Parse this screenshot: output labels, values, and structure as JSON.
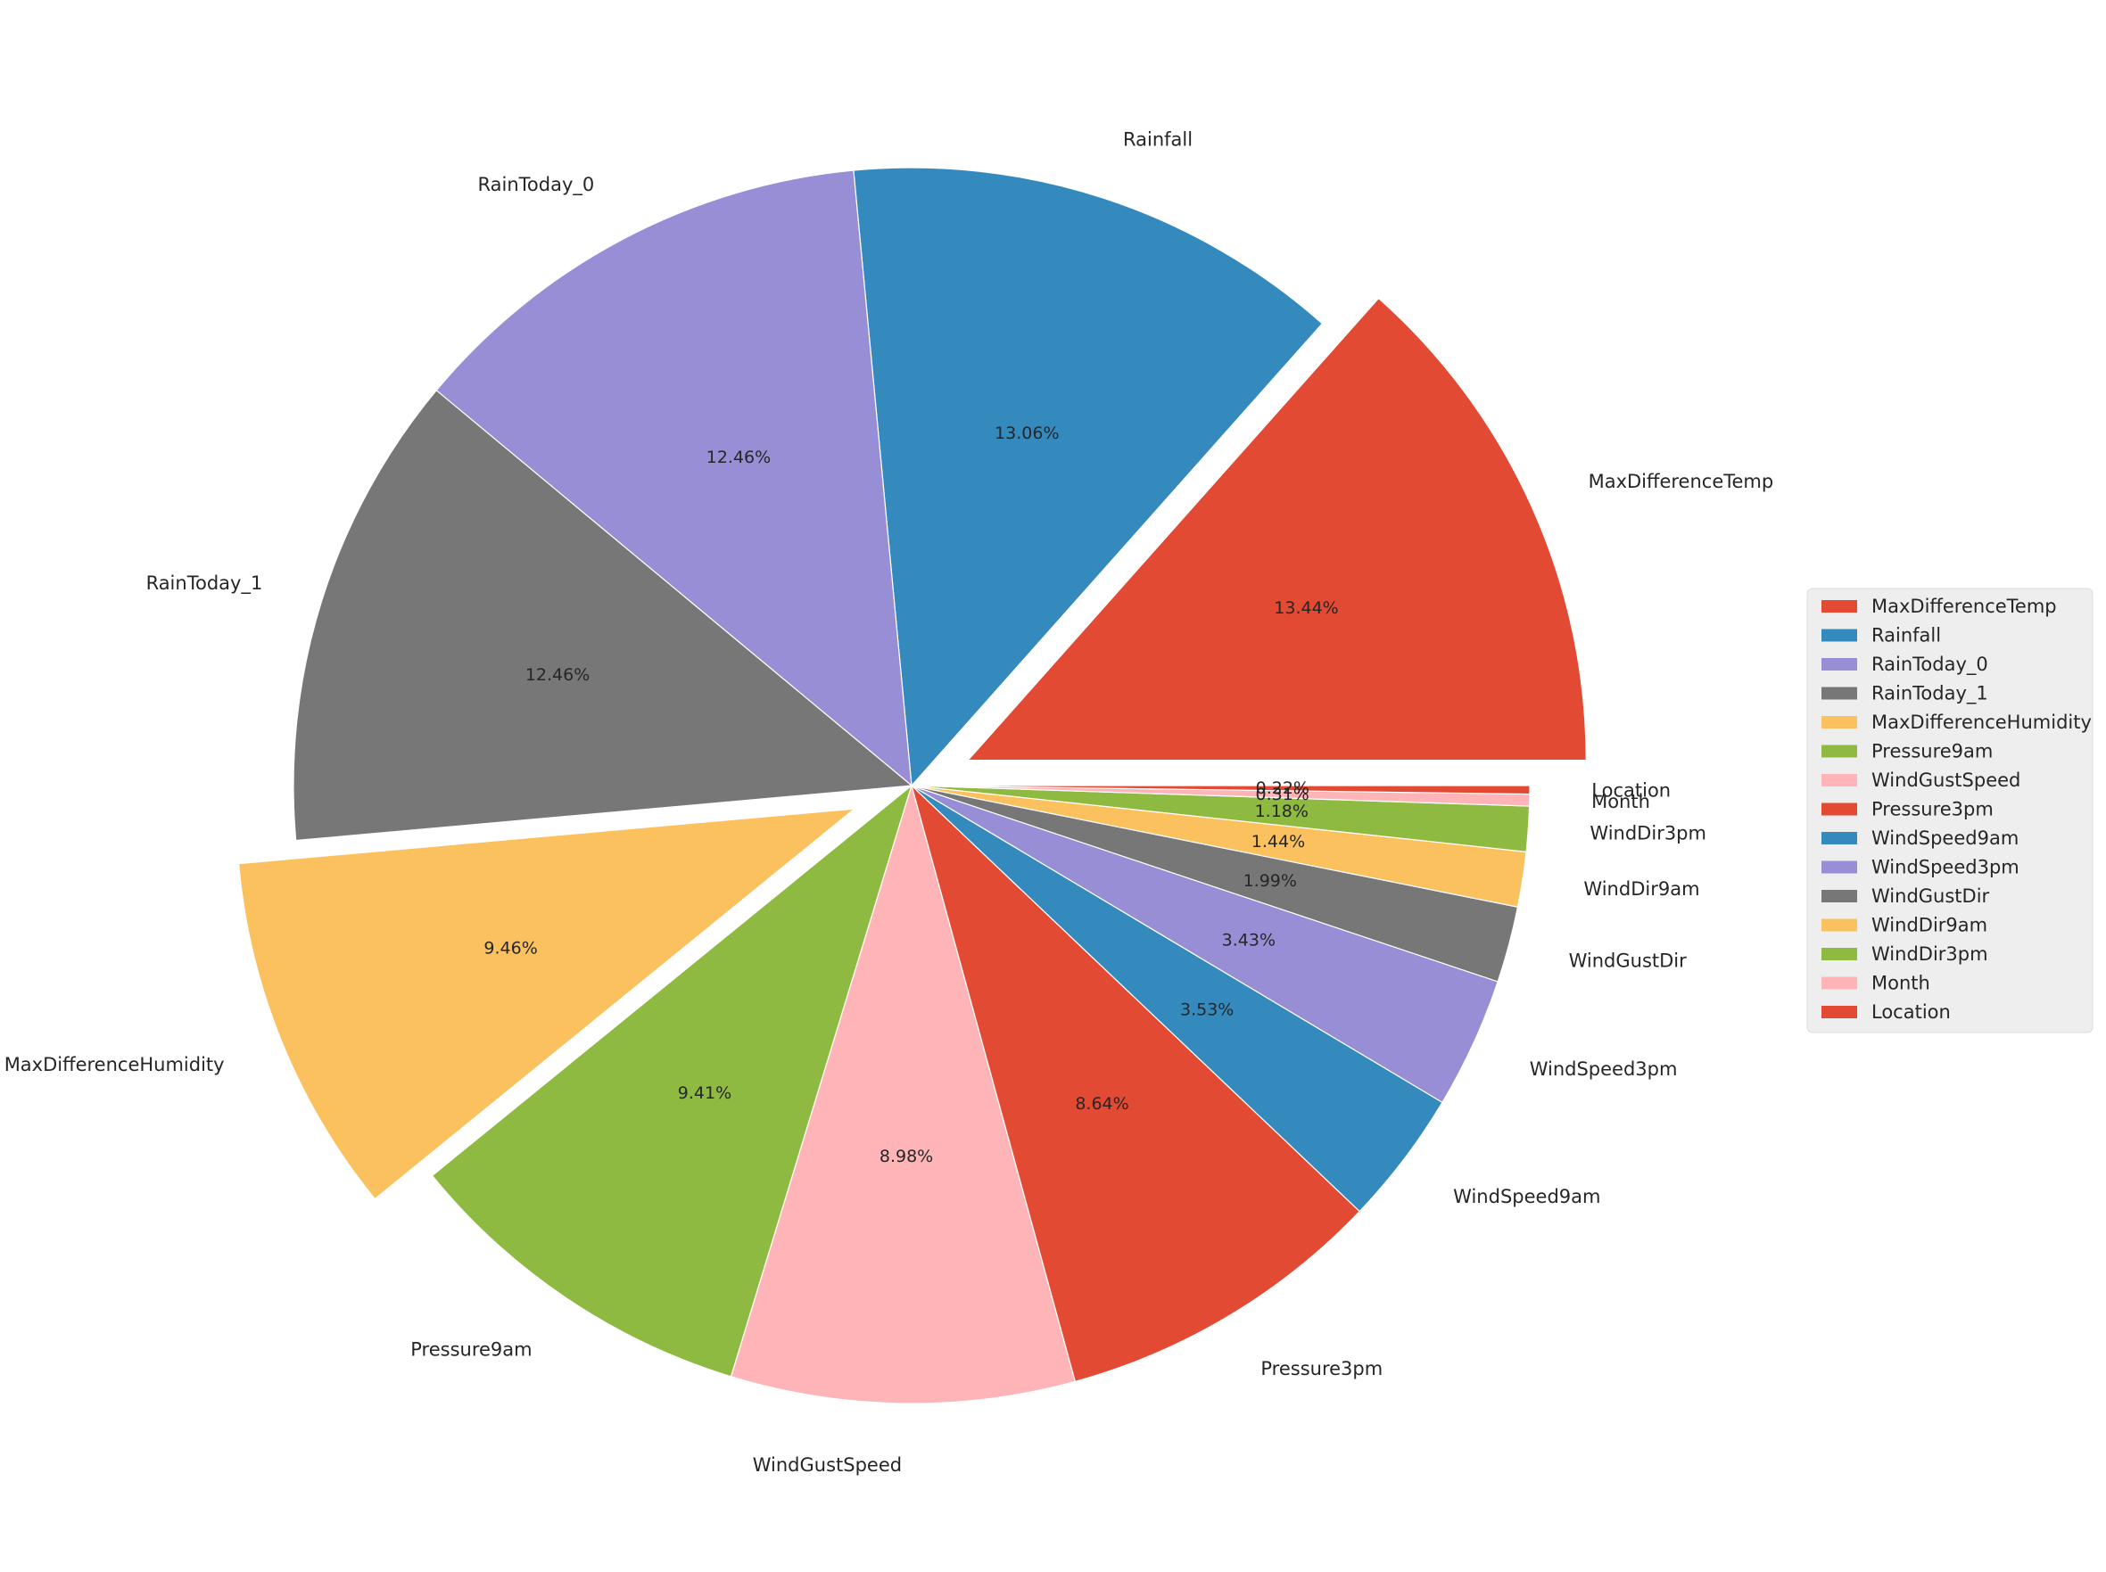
{
  "chart_data": {
    "type": "pie",
    "title": "",
    "start_angle_deg": 0,
    "direction": "counterclockwise",
    "legend_position": "center-right",
    "slices": [
      {
        "label": "MaxDifferenceTemp",
        "value": 13.44,
        "pct_text": "13.44%",
        "color": "#E24A33",
        "exploded": true
      },
      {
        "label": "Rainfall",
        "value": 13.06,
        "pct_text": "13.06%",
        "color": "#348ABD",
        "exploded": false
      },
      {
        "label": "RainToday_0",
        "value": 12.46,
        "pct_text": "12.46%",
        "color": "#988ED5",
        "exploded": false
      },
      {
        "label": "RainToday_1",
        "value": 12.46,
        "pct_text": "12.46%",
        "color": "#777777",
        "exploded": false
      },
      {
        "label": "MaxDifferenceHumidity",
        "value": 9.46,
        "pct_text": "9.46%",
        "color": "#FBC15E",
        "exploded": true
      },
      {
        "label": "Pressure9am",
        "value": 9.41,
        "pct_text": "9.41%",
        "color": "#8EBA42",
        "exploded": false
      },
      {
        "label": "WindGustSpeed",
        "value": 8.98,
        "pct_text": "8.98%",
        "color": "#FFB5B8",
        "exploded": false
      },
      {
        "label": "Pressure3pm",
        "value": 8.64,
        "pct_text": "8.64%",
        "color": "#E24A33",
        "exploded": false
      },
      {
        "label": "WindSpeed9am",
        "value": 3.53,
        "pct_text": "3.53%",
        "color": "#348ABD",
        "exploded": false
      },
      {
        "label": "WindSpeed3pm",
        "value": 3.43,
        "pct_text": "3.43%",
        "color": "#988ED5",
        "exploded": false
      },
      {
        "label": "WindGustDir",
        "value": 1.99,
        "pct_text": "1.99%",
        "color": "#777777",
        "exploded": false
      },
      {
        "label": "WindDir9am",
        "value": 1.44,
        "pct_text": "1.44%",
        "color": "#FBC15E",
        "exploded": false
      },
      {
        "label": "WindDir3pm",
        "value": 1.18,
        "pct_text": "1.18%",
        "color": "#8EBA42",
        "exploded": false
      },
      {
        "label": "Month",
        "value": 0.31,
        "pct_text": "0.31%",
        "color": "#FFB5B8",
        "exploded": false
      },
      {
        "label": "Location",
        "value": 0.22,
        "pct_text": "0.22%",
        "color": "#E24A33",
        "exploded": false
      }
    ]
  }
}
